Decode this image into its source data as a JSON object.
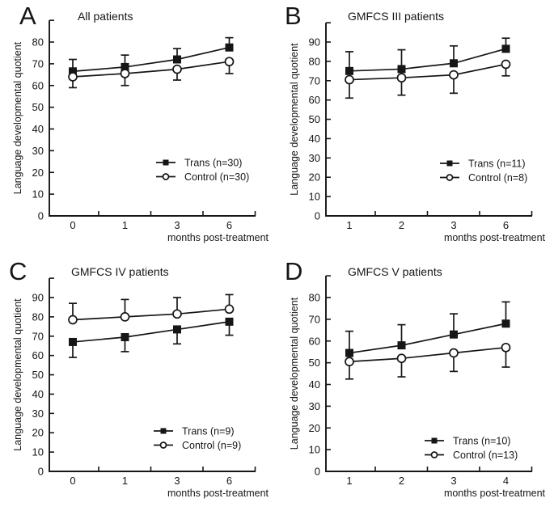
{
  "figure": {
    "background": "#ffffff",
    "ink": "#161616",
    "panel_letters": [
      "A",
      "B",
      "C",
      "D"
    ]
  },
  "chart_data": [
    {
      "panel": "A",
      "type": "line",
      "title": "All patients",
      "xlabel": "months post-treatment",
      "ylabel": "Language developmental quotient",
      "categories": [
        "0",
        "1",
        "3",
        "6"
      ],
      "ylim": [
        0,
        80
      ],
      "ytick_step": 10,
      "grid": false,
      "legend_position": "lower-right",
      "series": [
        {
          "name": "Trans (n=30)",
          "marker": "filled-square",
          "values": [
            66.5,
            68.5,
            72,
            77.5
          ],
          "error": [
            5.5,
            5.5,
            5,
            4.5
          ],
          "error_direction": "up"
        },
        {
          "name": "Control (n=30)",
          "marker": "open-circle",
          "values": [
            64,
            65.5,
            67.5,
            71
          ],
          "error": [
            5,
            5.5,
            5,
            5.5
          ],
          "error_direction": "down"
        }
      ]
    },
    {
      "panel": "B",
      "type": "line",
      "title": "GMFCS III patients",
      "xlabel": "months post-treatment",
      "ylabel": "Language developmental quotient",
      "categories": [
        "1",
        "2",
        "3",
        "6"
      ],
      "ylim": [
        0,
        90
      ],
      "ytick_step": 10,
      "grid": false,
      "legend_position": "lower-right",
      "series": [
        {
          "name": "Trans (n=11)",
          "marker": "filled-square",
          "values": [
            75,
            76,
            79,
            86.5
          ],
          "error": [
            10,
            10,
            9,
            5.5
          ],
          "error_direction": "up"
        },
        {
          "name": "Control (n=8)",
          "marker": "open-circle",
          "values": [
            70.5,
            71.5,
            73,
            78.5
          ],
          "error": [
            9.5,
            9,
            9.5,
            6
          ],
          "error_direction": "down"
        }
      ]
    },
    {
      "panel": "C",
      "type": "line",
      "title": "GMFCS IV patients",
      "xlabel": "months post-treatment",
      "ylabel": "Language developmental quotient",
      "categories": [
        "0",
        "1",
        "3",
        "6"
      ],
      "ylim": [
        0,
        90
      ],
      "ytick_step": 10,
      "grid": false,
      "legend_position": "lower-right",
      "series": [
        {
          "name": "Trans (n=9)",
          "marker": "filled-square",
          "values": [
            67,
            69.5,
            73.5,
            77.5
          ],
          "error": [
            8,
            7.5,
            7.5,
            7
          ],
          "error_direction": "down"
        },
        {
          "name": "Control (n=9)",
          "marker": "open-circle",
          "values": [
            78.5,
            80,
            81.5,
            84
          ],
          "error": [
            8.5,
            9,
            8.5,
            7.5
          ],
          "error_direction": "up"
        }
      ]
    },
    {
      "panel": "D",
      "type": "line",
      "title": "GMFCS V patients",
      "xlabel": "months post-treatment",
      "ylabel": "Language developmental quotient",
      "categories": [
        "1",
        "2",
        "3",
        "4"
      ],
      "ylim": [
        0,
        80
      ],
      "ytick_step": 10,
      "grid": false,
      "legend_position": "lower-right",
      "series": [
        {
          "name": "Trans (n=10)",
          "marker": "filled-square",
          "values": [
            54.5,
            58,
            63,
            68
          ],
          "error": [
            10,
            9.5,
            9.5,
            10
          ],
          "error_direction": "up"
        },
        {
          "name": "Control (n=13)",
          "marker": "open-circle",
          "values": [
            50.5,
            52,
            54.5,
            57
          ],
          "error": [
            8,
            8.5,
            8.5,
            9
          ],
          "error_direction": "down"
        }
      ]
    }
  ]
}
